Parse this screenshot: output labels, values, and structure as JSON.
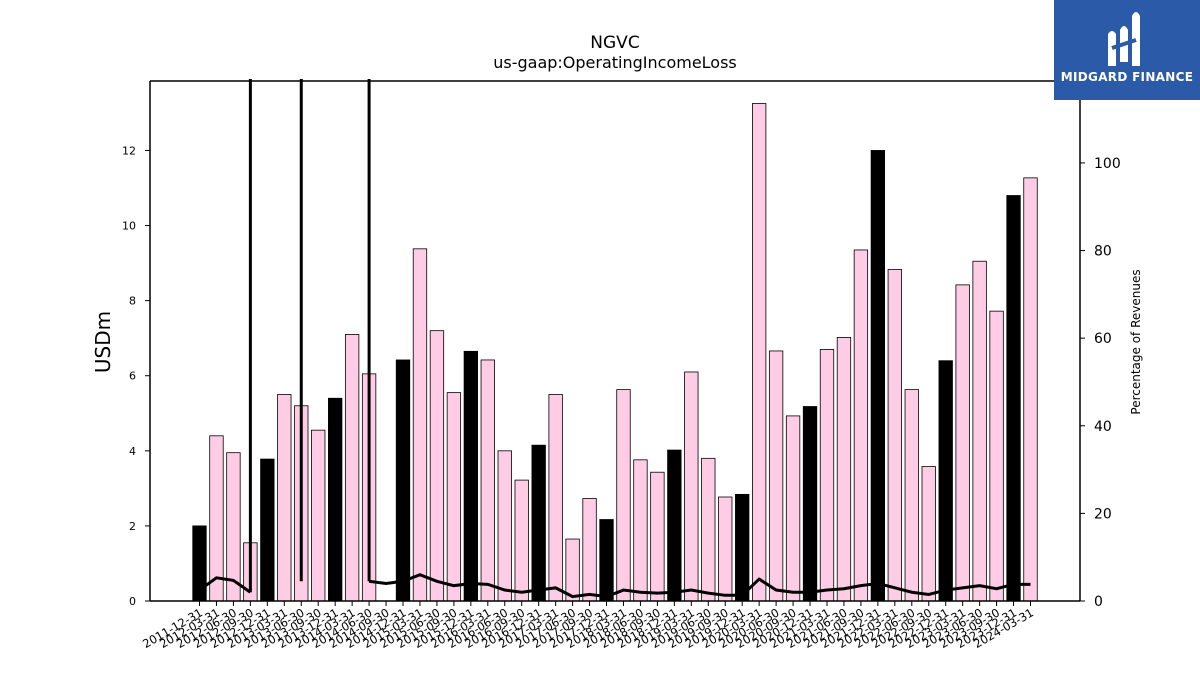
{
  "logo": {
    "text": "MIDGARD FINANCE",
    "bg_color": "#2b5aa8"
  },
  "chart_data": {
    "type": "bar",
    "title": "NGVC",
    "subtitle": "us-gaap:OperatingIncomeLoss",
    "ylabel": "USDm",
    "y2label": "Percentage of Revenues",
    "ylim": [
      0,
      13.85
    ],
    "y2lim": [
      0,
      118.7
    ],
    "yticks": [
      0,
      2,
      4,
      6,
      8,
      10,
      12
    ],
    "y2ticks": [
      0,
      20,
      40,
      60,
      80,
      100
    ],
    "colors": {
      "annual_bar": "#000000",
      "quarter_bar": "#ffcce6",
      "line": "#000000"
    },
    "categories": [
      "2011-12-31",
      "2012-03-31",
      "2012-06-30",
      "2012-09-30",
      "2012-12-31",
      "2013-03-31",
      "2013-06-30",
      "2013-09-30",
      "2013-12-31",
      "2014-03-31",
      "2014-06-30",
      "2014-09-30",
      "2014-12-31",
      "2015-03-31",
      "2015-06-30",
      "2015-09-30",
      "2015-12-31",
      "2016-03-31",
      "2016-06-30",
      "2016-09-30",
      "2016-12-31",
      "2017-03-31",
      "2017-06-30",
      "2017-09-30",
      "2017-12-31",
      "2018-03-31",
      "2018-06-30",
      "2018-09-30",
      "2018-12-31",
      "2019-03-31",
      "2019-06-30",
      "2019-09-30",
      "2019-12-31",
      "2020-03-31",
      "2020-06-30",
      "2020-09-30",
      "2020-12-31",
      "2021-03-31",
      "2021-06-30",
      "2021-09-30",
      "2021-12-31",
      "2022-03-31",
      "2022-06-30",
      "2022-09-30",
      "2022-12-31",
      "2023-03-31",
      "2023-06-30",
      "2023-09-30",
      "2023-12-31",
      "2024-03-31"
    ],
    "series": [
      {
        "kind": "bar",
        "values": [
          2.0,
          4.4,
          3.95,
          1.55,
          3.78,
          5.5,
          5.2,
          4.55,
          5.4,
          7.1,
          6.05,
          null,
          6.42,
          9.38,
          7.2,
          5.55,
          6.65,
          6.42,
          4.0,
          3.22,
          4.15,
          5.5,
          1.65,
          2.73,
          2.17,
          5.63,
          3.76,
          3.43,
          4.02,
          6.1,
          3.8,
          2.77,
          2.84,
          13.25,
          6.66,
          4.93,
          5.18,
          6.7,
          7.02,
          9.35,
          12.0,
          8.83,
          5.63,
          3.58,
          6.4,
          8.42,
          9.05,
          7.72,
          10.8,
          11.27
        ],
        "annual": [
          true,
          false,
          false,
          false,
          true,
          false,
          false,
          false,
          true,
          false,
          false,
          true,
          true,
          false,
          false,
          false,
          true,
          false,
          false,
          false,
          true,
          false,
          false,
          false,
          true,
          false,
          false,
          false,
          true,
          false,
          false,
          false,
          true,
          false,
          false,
          false,
          true,
          false,
          false,
          false,
          true,
          false,
          false,
          false,
          true,
          false,
          false,
          false,
          true,
          false
        ]
      },
      {
        "kind": "line",
        "axis": "right",
        "values": [
          2.5,
          5.3,
          4.7,
          2.0,
          null,
          null,
          4.5,
          null,
          null,
          null,
          4.5,
          4.0,
          4.5,
          6.0,
          4.5,
          3.5,
          4.0,
          3.8,
          2.5,
          2.0,
          2.5,
          3.0,
          1.0,
          1.5,
          1.0,
          2.5,
          2.0,
          1.8,
          2.0,
          2.5,
          1.8,
          1.3,
          1.3,
          5.0,
          2.5,
          2.0,
          2.0,
          2.5,
          2.8,
          3.5,
          4.0,
          3.0,
          2.0,
          1.5,
          2.5,
          3.0,
          3.5,
          2.8,
          3.8,
          3.8
        ]
      }
    ],
    "spikes": [
      {
        "category_index": 3,
        "from": 2.0,
        "to": 118.7
      },
      {
        "category_index": 6,
        "from": 4.5,
        "to": 118.7
      },
      {
        "category_index": 10,
        "from": 4.5,
        "to": 118.7
      }
    ],
    "grid": false,
    "legend": "none"
  }
}
